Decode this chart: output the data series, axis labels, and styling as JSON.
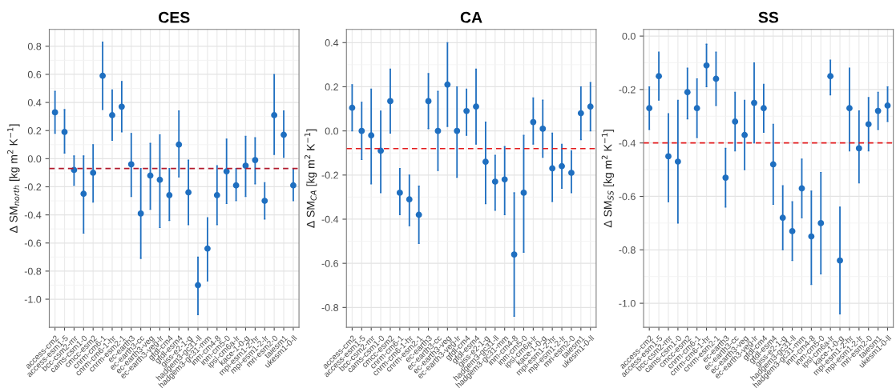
{
  "chart_data": [
    {
      "type": "scatter",
      "title": "CES",
      "ylabel": "Δ SM$_{north}$ [kg m$^{2}$ K$^{−1}$]",
      "categories": [
        "access-cm2",
        "access-esm1-5",
        "bcc-csm2-mr",
        "cams-csm1-0",
        "cmcc-esm2",
        "cnrm-cm6-1",
        "cnrm-cm6-1-hr",
        "cnrm-esm2-1",
        "ec-earth3",
        "ec-earth3-cc",
        "ec-earth3-veg",
        "ec-earth3-veg-lr",
        "gfdl-cm4",
        "gfdl-esm4",
        "giss-e2-1-g",
        "hadgem3-gc31-ll",
        "hadgem3-gc31-mm",
        "inm-cm4-8",
        "inm-cm5-0",
        "ipsl-cm6a-lr",
        "kace-1-0-g",
        "mpi-esm1-2-hr",
        "mpi-esm1-2-lr",
        "mri-esm2-0",
        "taiesm1",
        "ukesm1-0-ll"
      ],
      "series": [
        {
          "color": "#1f6fc0",
          "values": [
            0.33,
            0.19,
            -0.08,
            -0.25,
            -0.1,
            0.59,
            0.31,
            0.37,
            -0.04,
            -0.39,
            -0.12,
            -0.15,
            -0.26,
            0.1,
            -0.24,
            -0.9,
            -0.64,
            -0.26,
            -0.09,
            -0.19,
            -0.05,
            -0.01,
            -0.3,
            0.31,
            0.17,
            -0.19
          ],
          "errors": [
            [
              0.18,
              0.48
            ],
            [
              0.04,
              0.35
            ],
            [
              -0.19,
              0.02
            ],
            [
              -0.53,
              0.02
            ],
            [
              -0.31,
              0.1
            ],
            [
              0.35,
              0.83
            ],
            [
              0.13,
              0.49
            ],
            [
              0.19,
              0.55
            ],
            [
              -0.27,
              0.18
            ],
            [
              -0.71,
              -0.07
            ],
            [
              -0.36,
              0.11
            ],
            [
              -0.49,
              0.17
            ],
            [
              -0.44,
              -0.07
            ],
            [
              -0.13,
              0.34
            ],
            [
              -0.47,
              -0.01
            ],
            [
              -1.11,
              -0.7
            ],
            [
              -0.87,
              -0.42
            ],
            [
              -0.47,
              -0.05
            ],
            [
              -0.32,
              0.14
            ],
            [
              -0.3,
              -0.07
            ],
            [
              -0.27,
              0.16
            ],
            [
              -0.18,
              0.15
            ],
            [
              -0.43,
              -0.17
            ],
            [
              0.03,
              0.6
            ],
            [
              0.01,
              0.34
            ],
            [
              -0.3,
              -0.07
            ]
          ]
        }
      ],
      "ylim": [
        -1.2,
        0.92
      ],
      "yticks": [
        {
          "value": -1.0,
          "label": "-1.0"
        },
        {
          "value": -0.8,
          "label": "-0.8"
        },
        {
          "value": -0.6,
          "label": "-0.6"
        },
        {
          "value": -0.4,
          "label": "-0.4"
        },
        {
          "value": -0.2,
          "label": "-0.2"
        },
        {
          "value": 0.0,
          "label": "0.0"
        },
        {
          "value": 0.2,
          "label": "0.2"
        },
        {
          "value": 0.4,
          "label": "0.4"
        },
        {
          "value": 0.6,
          "label": "0.6"
        },
        {
          "value": 0.8,
          "label": "0.8"
        }
      ],
      "ref_lines": [
        {
          "axis": "y",
          "value": -0.07,
          "color": "#b2182b",
          "line_style": "dashed"
        }
      ],
      "grid": true,
      "marker": "circle"
    },
    {
      "type": "scatter",
      "title": "CA",
      "ylabel": "Δ SM$_{CA}$ [kg m$^{2}$ K$^{−1}$]",
      "categories": [
        "access-cm2",
        "access-esm1-5",
        "bcc-csm2-mr",
        "cams-csm1-0",
        "cmcc-esm2",
        "cnrm-cm6-1",
        "cnrm-cm6-1-hr",
        "cnrm-esm2-1",
        "ec-earth3",
        "ec-earth3-cc",
        "ec-earth3-veg",
        "ec-earth3-veg-lr",
        "gfdl-cm4",
        "gfdl-esm4",
        "giss-e2-1-g",
        "hadgem3-gc31-ll",
        "hadgem3-gc31-mm",
        "inm-cm4-8",
        "inm-cm5-0",
        "ipsl-cm6a-lr",
        "kace-1-0-g",
        "mpi-esm1-2-hr",
        "mpi-esm1-2-lr",
        "mri-esm2-0",
        "taiesm1",
        "ukesm1-0-ll"
      ],
      "series": [
        {
          "color": "#1f6fc0",
          "values": [
            0.105,
            0.0,
            -0.02,
            -0.09,
            0.135,
            -0.28,
            -0.31,
            -0.38,
            0.135,
            0.0,
            0.21,
            0.0,
            0.09,
            0.11,
            -0.14,
            -0.23,
            -0.22,
            -0.56,
            -0.28,
            0.04,
            0.01,
            -0.17,
            -0.16,
            -0.19,
            0.08,
            0.11
          ],
          "errors": [
            [
              0.0,
              0.21
            ],
            [
              -0.13,
              0.13
            ],
            [
              -0.24,
              0.19
            ],
            [
              -0.28,
              0.09
            ],
            [
              -0.01,
              0.28
            ],
            [
              -0.38,
              -0.17
            ],
            [
              -0.43,
              -0.2
            ],
            [
              -0.51,
              -0.25
            ],
            [
              0.01,
              0.26
            ],
            [
              -0.18,
              0.18
            ],
            [
              0.02,
              0.4
            ],
            [
              -0.21,
              0.2
            ],
            [
              -0.02,
              0.19
            ],
            [
              -0.06,
              0.28
            ],
            [
              -0.33,
              0.04
            ],
            [
              -0.36,
              -0.11
            ],
            [
              -0.38,
              -0.07
            ],
            [
              -0.84,
              -0.28
            ],
            [
              -0.55,
              -0.02
            ],
            [
              -0.06,
              0.15
            ],
            [
              -0.12,
              0.14
            ],
            [
              -0.32,
              -0.01
            ],
            [
              -0.26,
              -0.06
            ],
            [
              -0.28,
              -0.09
            ],
            [
              -0.04,
              0.2
            ],
            [
              0.0,
              0.22
            ]
          ]
        }
      ],
      "ylim": [
        -0.89,
        0.46
      ],
      "yticks": [
        {
          "value": -0.8,
          "label": "-0.8"
        },
        {
          "value": -0.6,
          "label": "-0.6"
        },
        {
          "value": -0.4,
          "label": "-0.4"
        },
        {
          "value": -0.2,
          "label": "-0.2"
        },
        {
          "value": 0.0,
          "label": "0.0"
        },
        {
          "value": 0.2,
          "label": "0.2"
        },
        {
          "value": 0.4,
          "label": "0.4"
        }
      ],
      "ref_lines": [
        {
          "axis": "y",
          "value": -0.08,
          "color": "#e31a1c",
          "line_style": "dashed"
        }
      ],
      "grid": true,
      "marker": "circle"
    },
    {
      "type": "scatter",
      "title": "SS",
      "ylabel": "Δ SM$_{SS}$ [kg m$^{2}$ K$^{−1}$]",
      "categories": [
        "access-cm2",
        "access-esm1-5",
        "bcc-csm2-mr",
        "cams-csm1-0",
        "cmcc-esm2",
        "cnrm-cm6-1",
        "cnrm-cm6-1-hr",
        "cnrm-esm2-1",
        "ec-earth3",
        "ec-earth3-cc",
        "ec-earth3-veg",
        "ec-earth3-veg-lr",
        "gfdl-cm4",
        "gfdl-esm4",
        "giss-e2-1-g",
        "hadgem3-gc31-ll",
        "hadgem3-gc31-mm",
        "inm-cm4-8",
        "inm-cm5-0",
        "ipsl-cm6a-lr",
        "kace-1-0-g",
        "mpi-esm1-2-hr",
        "mpi-esm1-2-lr",
        "mri-esm2-0",
        "taiesm1",
        "ukesm1-0-ll"
      ],
      "series": [
        {
          "color": "#1f6fc0",
          "values": [
            -0.27,
            -0.15,
            -0.45,
            -0.47,
            -0.21,
            -0.27,
            -0.11,
            -0.16,
            -0.53,
            -0.32,
            -0.37,
            -0.25,
            -0.27,
            -0.48,
            -0.68,
            -0.73,
            -0.57,
            -0.75,
            -0.7,
            -0.15,
            -0.84,
            -0.27,
            -0.42,
            -0.33,
            -0.28,
            -0.26
          ],
          "errors": [
            [
              -0.35,
              -0.19
            ],
            [
              -0.24,
              -0.06
            ],
            [
              -0.62,
              -0.29
            ],
            [
              -0.7,
              -0.24
            ],
            [
              -0.31,
              -0.12
            ],
            [
              -0.38,
              -0.16
            ],
            [
              -0.19,
              -0.03
            ],
            [
              -0.26,
              -0.06
            ],
            [
              -0.64,
              -0.42
            ],
            [
              -0.43,
              -0.21
            ],
            [
              -0.5,
              -0.24
            ],
            [
              -0.4,
              -0.1
            ],
            [
              -0.36,
              -0.18
            ],
            [
              -0.63,
              -0.33
            ],
            [
              -0.8,
              -0.56
            ],
            [
              -0.84,
              -0.62
            ],
            [
              -0.68,
              -0.46
            ],
            [
              -0.93,
              -0.58
            ],
            [
              -0.89,
              -0.51
            ],
            [
              -0.22,
              -0.09
            ],
            [
              -1.04,
              -0.64
            ],
            [
              -0.43,
              -0.12
            ],
            [
              -0.55,
              -0.28
            ],
            [
              -0.43,
              -0.23
            ],
            [
              -0.35,
              -0.21
            ],
            [
              -0.32,
              -0.19
            ]
          ]
        }
      ],
      "ylim": [
        -1.09,
        0.025
      ],
      "yticks": [
        {
          "value": -1.0,
          "label": "-1.0"
        },
        {
          "value": -0.8,
          "label": "-0.8"
        },
        {
          "value": -0.6,
          "label": "-0.6"
        },
        {
          "value": -0.4,
          "label": "-0.4"
        },
        {
          "value": -0.2,
          "label": "-0.2"
        },
        {
          "value": 0.0,
          "label": "0.0"
        }
      ],
      "ref_lines": [
        {
          "axis": "y",
          "value": -0.4,
          "color": "#e31a1c",
          "line_style": "dashed"
        }
      ],
      "grid": true,
      "marker": "circle"
    }
  ]
}
